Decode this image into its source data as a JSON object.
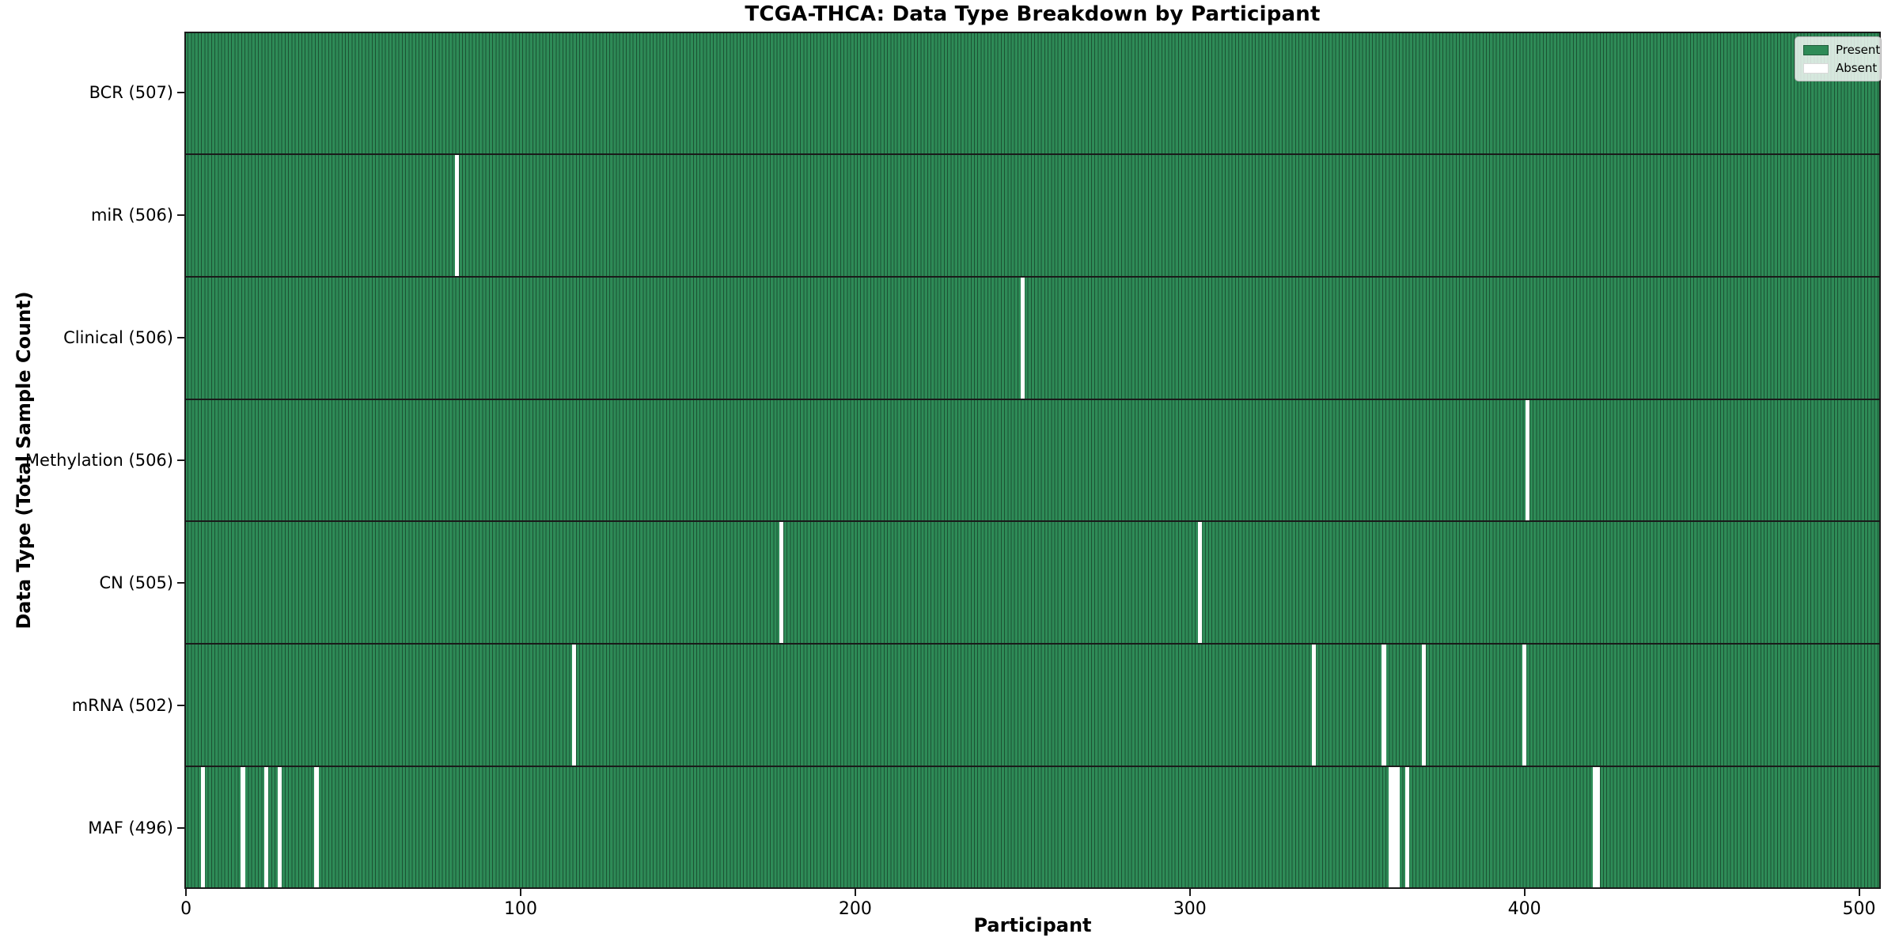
{
  "chart_data": {
    "type": "heatmap",
    "title": "TCGA-THCA: Data Type Breakdown by Participant",
    "xlabel": "Participant",
    "ylabel": "Data Type (Total Sample Count)",
    "x_ticks": [
      0,
      100,
      200,
      300,
      400,
      500
    ],
    "x_range": [
      0,
      507
    ],
    "n_participants": 507,
    "grid": false,
    "colors": {
      "present": "#2e8b57",
      "present_edge": "#1b5233",
      "absent": "#ffffff",
      "frame": "#1a1a1a"
    },
    "legend": {
      "position": "upper right",
      "entries": [
        {
          "label": "Present",
          "color": "#2e8b57"
        },
        {
          "label": "Absent",
          "color": "#ffffff"
        }
      ]
    },
    "rows": [
      {
        "label": "BCR (507)",
        "data_type": "BCR",
        "present_count": 507,
        "absent_participants": []
      },
      {
        "label": "miR (506)",
        "data_type": "miR",
        "present_count": 506,
        "absent_participants": [
          81
        ]
      },
      {
        "label": "Clinical (506)",
        "data_type": "Clinical",
        "present_count": 506,
        "absent_participants": [
          250
        ]
      },
      {
        "label": "Methylation (506)",
        "data_type": "Methylation",
        "present_count": 506,
        "absent_participants": [
          401
        ]
      },
      {
        "label": "CN (505)",
        "data_type": "CN",
        "present_count": 505,
        "absent_participants": [
          178,
          303
        ]
      },
      {
        "label": "mRNA (502)",
        "data_type": "mRNA",
        "present_count": 502,
        "absent_participants": [
          116,
          337,
          358,
          370,
          400
        ]
      },
      {
        "label": "MAF (496)",
        "data_type": "MAF",
        "present_count": 496,
        "absent_participants": [
          5,
          17,
          24,
          28,
          39,
          360,
          361,
          362,
          365,
          421,
          422
        ]
      }
    ]
  }
}
